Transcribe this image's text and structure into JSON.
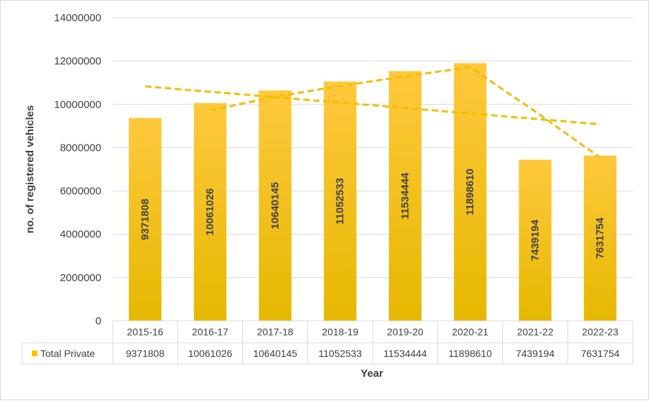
{
  "chart_data": {
    "type": "bar",
    "categories": [
      "2015-16",
      "2016-17",
      "2017-18",
      "2018-19",
      "2019-20",
      "2020-21",
      "2021-22",
      "2022-23"
    ],
    "series": [
      {
        "name": "Total Private",
        "values": [
          9371808,
          10061026,
          10640145,
          11052533,
          11534444,
          11898610,
          7439194,
          7631754
        ],
        "color": "#FFC000"
      }
    ],
    "ylabel": "no. of registered vehicles",
    "xlabel": "Year",
    "ylim": [
      0,
      14000000
    ],
    "yticks": [
      0,
      2000000,
      4000000,
      6000000,
      8000000,
      10000000,
      12000000,
      14000000
    ],
    "grid": true,
    "data_table": true,
    "trendlines": [
      {
        "kind": "linear",
        "style": "dashed",
        "color": "#F2BE00"
      },
      {
        "kind": "moving-average",
        "period": 2,
        "style": "dashed",
        "color": "#F2BE00"
      }
    ]
  }
}
